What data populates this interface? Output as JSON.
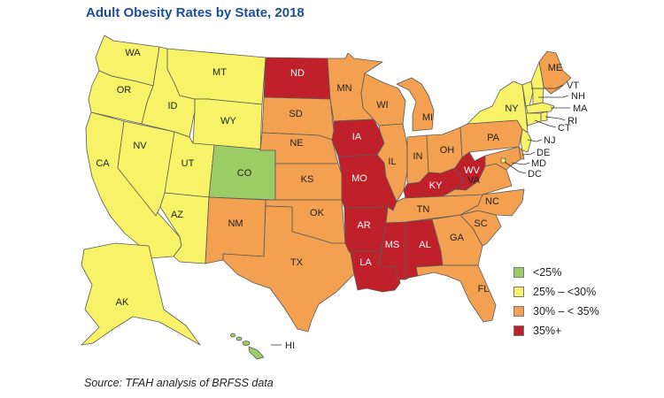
{
  "title": "Adult Obesity Rates by State, 2018",
  "source": "Source: TFAH analysis of BRFSS data",
  "colors": {
    "lt25": "#9ccc65",
    "25to30": "#f7f267",
    "30to35": "#f4a051",
    "gte35": "#c0202a"
  },
  "legend": [
    {
      "label": "<25%",
      "key": "lt25"
    },
    {
      "label": "25% – <30%",
      "key": "25to30"
    },
    {
      "label": "30% – < 35%",
      "key": "30to35"
    },
    {
      "label": "35%+",
      "key": "gte35"
    }
  ],
  "states": [
    {
      "abbr": "WA",
      "category": "25to30"
    },
    {
      "abbr": "OR",
      "category": "25to30"
    },
    {
      "abbr": "CA",
      "category": "25to30"
    },
    {
      "abbr": "NV",
      "category": "25to30"
    },
    {
      "abbr": "ID",
      "category": "25to30"
    },
    {
      "abbr": "MT",
      "category": "25to30"
    },
    {
      "abbr": "WY",
      "category": "25to30"
    },
    {
      "abbr": "UT",
      "category": "25to30"
    },
    {
      "abbr": "AZ",
      "category": "25to30"
    },
    {
      "abbr": "CO",
      "category": "lt25"
    },
    {
      "abbr": "NM",
      "category": "30to35"
    },
    {
      "abbr": "ND",
      "category": "gte35"
    },
    {
      "abbr": "SD",
      "category": "30to35"
    },
    {
      "abbr": "NE",
      "category": "30to35"
    },
    {
      "abbr": "KS",
      "category": "30to35"
    },
    {
      "abbr": "OK",
      "category": "30to35"
    },
    {
      "abbr": "TX",
      "category": "30to35"
    },
    {
      "abbr": "MN",
      "category": "30to35"
    },
    {
      "abbr": "IA",
      "category": "gte35"
    },
    {
      "abbr": "MO",
      "category": "gte35"
    },
    {
      "abbr": "AR",
      "category": "gte35"
    },
    {
      "abbr": "LA",
      "category": "gte35"
    },
    {
      "abbr": "WI",
      "category": "30to35"
    },
    {
      "abbr": "IL",
      "category": "30to35"
    },
    {
      "abbr": "MS",
      "category": "gte35"
    },
    {
      "abbr": "MI",
      "category": "30to35"
    },
    {
      "abbr": "IN",
      "category": "30to35"
    },
    {
      "abbr": "OH",
      "category": "30to35"
    },
    {
      "abbr": "KY",
      "category": "gte35"
    },
    {
      "abbr": "TN",
      "category": "30to35"
    },
    {
      "abbr": "AL",
      "category": "gte35"
    },
    {
      "abbr": "WV",
      "category": "gte35"
    },
    {
      "abbr": "GA",
      "category": "30to35"
    },
    {
      "abbr": "FL",
      "category": "30to35"
    },
    {
      "abbr": "SC",
      "category": "30to35"
    },
    {
      "abbr": "NC",
      "category": "30to35"
    },
    {
      "abbr": "VA",
      "category": "30to35"
    },
    {
      "abbr": "PA",
      "category": "30to35"
    },
    {
      "abbr": "NY",
      "category": "25to30"
    },
    {
      "abbr": "ME",
      "category": "30to35"
    },
    {
      "abbr": "VT",
      "category": "25to30"
    },
    {
      "abbr": "NH",
      "category": "25to30"
    },
    {
      "abbr": "MA",
      "category": "25to30"
    },
    {
      "abbr": "RI",
      "category": "25to30"
    },
    {
      "abbr": "CT",
      "category": "25to30"
    },
    {
      "abbr": "NJ",
      "category": "25to30"
    },
    {
      "abbr": "DE",
      "category": "30to35"
    },
    {
      "abbr": "MD",
      "category": "30to35"
    },
    {
      "abbr": "DC",
      "category": "25to30"
    },
    {
      "abbr": "AK",
      "category": "25to30"
    },
    {
      "abbr": "HI",
      "category": "lt25"
    }
  ]
}
